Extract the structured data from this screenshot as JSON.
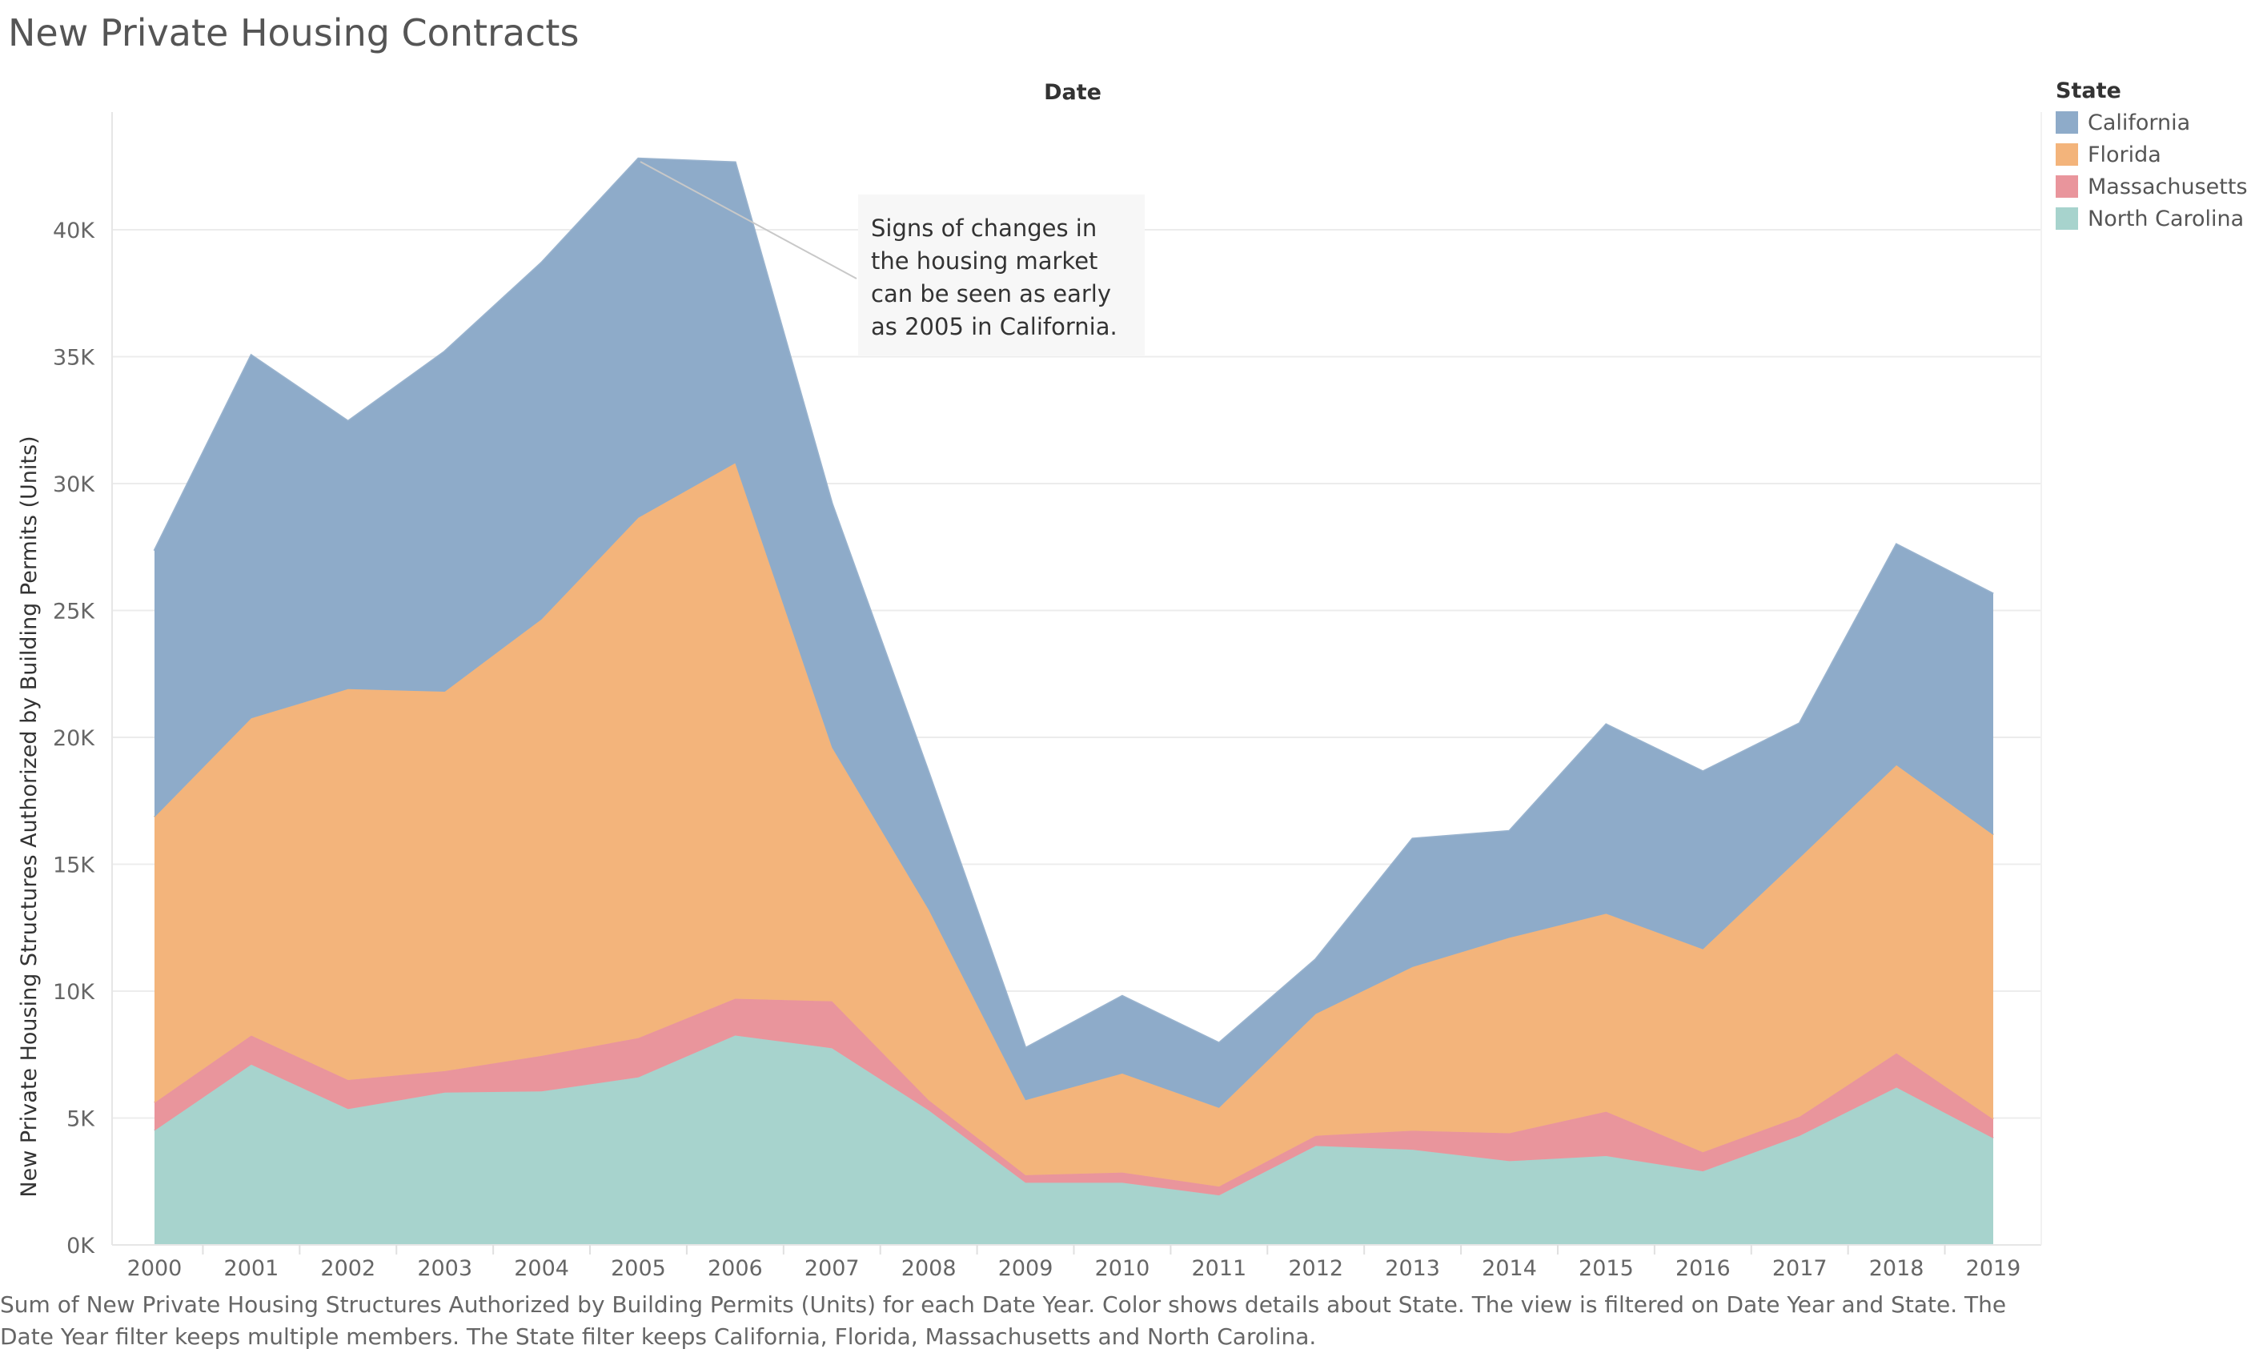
{
  "title": "New Private Housing Contracts",
  "caption": "Sum of New Private Housing Structures Authorized by Building Permits (Units) for each Date Year.  Color shows details about State. The view is filtered on Date Year and State. The Date Year filter keeps multiple members. The State filter keeps California, Florida, Massachusetts and North Carolina.",
  "annotation": "Signs of changes in the housing market can be seen as early as 2005 in California.",
  "chart_data": {
    "type": "area",
    "stacked": true,
    "top_label": "Date",
    "ylabel": "New Private Housing Structures Authorized by Building Permits (Units)",
    "xlabel": "",
    "x": [
      "2000",
      "2001",
      "2002",
      "2003",
      "2004",
      "2005",
      "2006",
      "2007",
      "2008",
      "2009",
      "2010",
      "2011",
      "2012",
      "2013",
      "2014",
      "2015",
      "2016",
      "2017",
      "2018",
      "2019"
    ],
    "ylim": [
      0,
      45000
    ],
    "yticks": [
      0,
      5000,
      10000,
      15000,
      20000,
      25000,
      30000,
      35000,
      40000
    ],
    "ytick_labels": [
      "0K",
      "5K",
      "10K",
      "15K",
      "20K",
      "25K",
      "30K",
      "35K",
      "40K"
    ],
    "grid": true,
    "legend_title": "State",
    "legend_position": "right",
    "series": [
      {
        "name": "North Carolina",
        "color": "#a7d3cd",
        "values": [
          4500,
          7100,
          5350,
          6000,
          6050,
          6600,
          8250,
          7750,
          5300,
          2450,
          2450,
          1950,
          3900,
          3750,
          3300,
          3500,
          2900,
          4300,
          6200,
          4200
        ]
      },
      {
        "name": "Massachusetts",
        "color": "#e9959c",
        "values": [
          1100,
          1150,
          1150,
          850,
          1400,
          1550,
          1450,
          1850,
          400,
          300,
          400,
          350,
          400,
          750,
          1100,
          1750,
          750,
          750,
          1350,
          750
        ]
      },
      {
        "name": "Florida",
        "color": "#f3b47b",
        "values": [
          11250,
          12500,
          15400,
          14950,
          17200,
          20500,
          21100,
          10000,
          7500,
          2950,
          3900,
          3100,
          4800,
          6450,
          7700,
          7800,
          8000,
          10200,
          11350,
          11200
        ]
      },
      {
        "name": "California",
        "color": "#8eabc9",
        "values": [
          10500,
          14300,
          10550,
          13400,
          14050,
          14150,
          11850,
          9600,
          5400,
          2050,
          3050,
          2550,
          2150,
          5050,
          4200,
          7450,
          7000,
          5300,
          8700,
          9500
        ]
      }
    ],
    "legend_order": [
      "California",
      "Florida",
      "Massachusetts",
      "North Carolina"
    ]
  }
}
